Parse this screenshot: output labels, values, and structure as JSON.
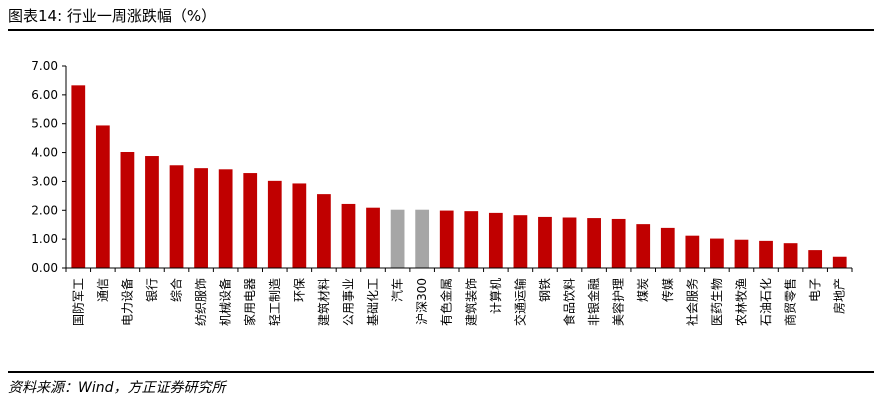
{
  "header": {
    "title": "图表14: 行业一周涨跌幅（%）"
  },
  "footer": {
    "source": "资料来源：Wind，方正证券研究所"
  },
  "colors": {
    "bar": "#c00000",
    "highlight": "#a6a6a6",
    "axis": "#000000"
  },
  "chart_data": {
    "type": "bar",
    "title": "",
    "xlabel": "",
    "ylabel": "",
    "ylim": [
      0,
      7
    ],
    "yticks": [
      "0.00",
      "1.00",
      "2.00",
      "3.00",
      "4.00",
      "5.00",
      "6.00",
      "7.00"
    ],
    "grid": false,
    "categories": [
      "国防军工",
      "通信",
      "电力设备",
      "银行",
      "综合",
      "纺织服饰",
      "机械设备",
      "家用电器",
      "轻工制造",
      "环保",
      "建筑材料",
      "公用事业",
      "基础化工",
      "汽车",
      "沪深300",
      "有色金属",
      "建筑装饰",
      "计算机",
      "交通运输",
      "钢铁",
      "食品饮料",
      "非银金融",
      "美容护理",
      "煤炭",
      "传媒",
      "社会服务",
      "医药生物",
      "农林牧渔",
      "石油石化",
      "商贸零售",
      "电子",
      "房地产"
    ],
    "values": [
      6.33,
      4.94,
      4.02,
      3.88,
      3.56,
      3.46,
      3.42,
      3.29,
      3.02,
      2.93,
      2.56,
      2.22,
      2.09,
      2.02,
      2.02,
      1.99,
      1.97,
      1.91,
      1.83,
      1.77,
      1.75,
      1.73,
      1.7,
      1.52,
      1.39,
      1.12,
      1.02,
      0.98,
      0.94,
      0.86,
      0.62,
      0.39
    ],
    "highlighted": [
      "汽车",
      "沪深300"
    ]
  }
}
